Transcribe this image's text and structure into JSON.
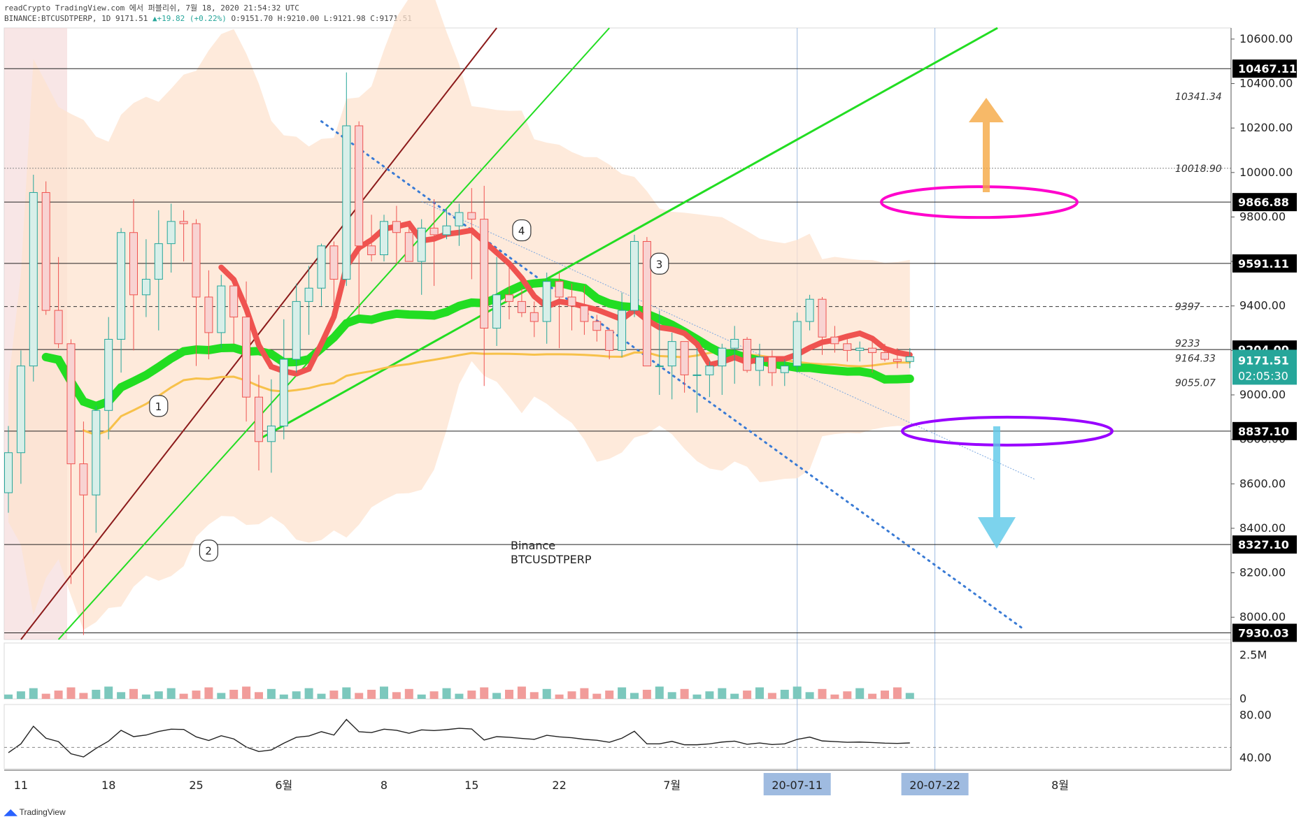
{
  "header": {
    "line1": "readCrypto TradingView.com 에서 퍼블리쉬, 7월 18, 2020 21:54:32 UTC",
    "symbol": "BINANCE:BTCUSDTPERP, 1D",
    "last": "9171.51",
    "change": "▲+19.82 (+0.22%)",
    "ohlc": "O:9151.70 H:9210.00 L:9121.98 C:9171.51"
  },
  "footer": {
    "brand": "TradingView"
  },
  "watermark": [
    "Binance",
    "BTCUSDTPERP"
  ],
  "colors": {
    "up": "#26a69a",
    "down": "#ef5350",
    "cloud": "#fde3cf",
    "green_line": "#22dd22",
    "dark_red_line": "#8b1a1a",
    "yellow_ma": "#f7c14a",
    "magenta": "#ff00cc",
    "purple": "#9900ff",
    "orange_arrow": "#f5a742",
    "blue_arrow": "#5bc8e8"
  },
  "chart_data": {
    "type": "candlestick",
    "price_axis": {
      "ylim": [
        7900,
        10650
      ],
      "ticks": [
        "10600.00",
        "10400.00",
        "10200.00",
        "10000.00",
        "9800.00",
        "9600.00",
        "9400.00",
        "9200.00",
        "9000.00",
        "8800.00",
        "8600.00",
        "8400.00",
        "8200.00",
        "8000.00"
      ],
      "levels": [
        {
          "label": "10467.11",
          "value": 10467.11
        },
        {
          "label": "9866.88",
          "value": 9866.88
        },
        {
          "label": "9591.11",
          "value": 9591.11
        },
        {
          "label": "9204.00",
          "value": 9204.0
        },
        {
          "label": "8837.10",
          "value": 8837.1
        },
        {
          "label": "8327.10",
          "value": 8327.1
        },
        {
          "label": "7930.03",
          "value": 7930.03
        }
      ],
      "current_price": "9171.51",
      "countdown": "02:05:30",
      "annotations": [
        {
          "label": "10341.34",
          "value": 10341.34
        },
        {
          "label": "10018.90",
          "value": 10018.9
        },
        {
          "label": "9397",
          "value": 9397
        },
        {
          "label": "9233",
          "value": 9233
        },
        {
          "label": "9164.33",
          "value": 9164.33
        },
        {
          "label": "9055.07",
          "value": 9055.07
        }
      ]
    },
    "time_axis": {
      "ticks": [
        {
          "label": "11",
          "bar": 1
        },
        {
          "label": "18",
          "bar": 8
        },
        {
          "label": "25",
          "bar": 15
        },
        {
          "label": "6월",
          "bar": 22
        },
        {
          "label": "8",
          "bar": 30
        },
        {
          "label": "15",
          "bar": 37
        },
        {
          "label": "22",
          "bar": 44
        },
        {
          "label": "7월",
          "bar": 53
        },
        {
          "label": "20-07-11",
          "bar": 63,
          "highlight": true
        },
        {
          "label": "20-07-22",
          "bar": 74,
          "highlight": true
        },
        {
          "label": "8월",
          "bar": 84
        }
      ]
    },
    "candles": [
      [
        8560,
        8860,
        8470,
        8740
      ],
      [
        8740,
        9200,
        8600,
        9130
      ],
      [
        9130,
        9990,
        9060,
        9910
      ],
      [
        9910,
        9960,
        9360,
        9380
      ],
      [
        9380,
        9620,
        9210,
        9230
      ],
      [
        9230,
        9250,
        8150,
        8690
      ],
      [
        8690,
        8880,
        7920,
        8550
      ],
      [
        8550,
        8950,
        8380,
        8930
      ],
      [
        8930,
        9350,
        8800,
        9250
      ],
      [
        9250,
        9750,
        9100,
        9730
      ],
      [
        9730,
        9880,
        9200,
        9450
      ],
      [
        9450,
        9700,
        9350,
        9520
      ],
      [
        9520,
        9830,
        9290,
        9680
      ],
      [
        9680,
        9860,
        9550,
        9780
      ],
      [
        9780,
        9830,
        9600,
        9770
      ],
      [
        9770,
        9790,
        9130,
        9440
      ],
      [
        9440,
        9560,
        9160,
        9280
      ],
      [
        9280,
        9540,
        9210,
        9490
      ],
      [
        9490,
        9530,
        9230,
        9350
      ],
      [
        9350,
        9510,
        8880,
        8990
      ],
      [
        8990,
        9090,
        8660,
        8790
      ],
      [
        8790,
        9070,
        8650,
        8860
      ],
      [
        8860,
        9340,
        8800,
        9160
      ],
      [
        9160,
        9500,
        9100,
        9420
      ],
      [
        9420,
        9580,
        9270,
        9480
      ],
      [
        9480,
        9680,
        9400,
        9670
      ],
      [
        9670,
        9690,
        9400,
        9520
      ],
      [
        9520,
        10450,
        9490,
        10210
      ],
      [
        10210,
        10230,
        9360,
        9670
      ],
      [
        9670,
        9810,
        9600,
        9630
      ],
      [
        9630,
        9810,
        9600,
        9780
      ],
      [
        9780,
        9850,
        9590,
        9730
      ],
      [
        9730,
        9780,
        9600,
        9600
      ],
      [
        9600,
        9790,
        9450,
        9750
      ],
      [
        9750,
        9880,
        9490,
        9720
      ],
      [
        9720,
        9840,
        9700,
        9760
      ],
      [
        9760,
        9860,
        9670,
        9820
      ],
      [
        9820,
        9930,
        9520,
        9790
      ],
      [
        9790,
        9940,
        9040,
        9300
      ],
      [
        9300,
        9620,
        9220,
        9450
      ],
      [
        9450,
        9580,
        9340,
        9420
      ],
      [
        9420,
        9480,
        9350,
        9370
      ],
      [
        9370,
        9420,
        9260,
        9330
      ],
      [
        9330,
        9550,
        9230,
        9510
      ],
      [
        9510,
        9550,
        9210,
        9440
      ],
      [
        9440,
        9500,
        9290,
        9400
      ],
      [
        9400,
        9490,
        9270,
        9330
      ],
      [
        9330,
        9360,
        9240,
        9290
      ],
      [
        9290,
        9300,
        9160,
        9200
      ],
      [
        9200,
        9460,
        9170,
        9380
      ],
      [
        9380,
        9720,
        9350,
        9690
      ],
      [
        9690,
        9710,
        9140,
        9130
      ],
      [
        9130,
        9380,
        9000,
        9130
      ],
      [
        9130,
        9280,
        8980,
        9240
      ],
      [
        9240,
        9230,
        9010,
        9090
      ],
      [
        9090,
        9210,
        8920,
        9090
      ],
      [
        9090,
        9150,
        8990,
        9130
      ],
      [
        9130,
        9230,
        9000,
        9210
      ],
      [
        9210,
        9310,
        9050,
        9250
      ],
      [
        9250,
        9260,
        9100,
        9110
      ],
      [
        9110,
        9230,
        9040,
        9170
      ],
      [
        9170,
        9200,
        9040,
        9100
      ],
      [
        9100,
        9160,
        9040,
        9130
      ],
      [
        9130,
        9370,
        9100,
        9330
      ],
      [
        9330,
        9450,
        9290,
        9430
      ],
      [
        9430,
        9440,
        9180,
        9260
      ],
      [
        9260,
        9310,
        9190,
        9230
      ],
      [
        9230,
        9260,
        9150,
        9200
      ],
      [
        9200,
        9240,
        9150,
        9210
      ],
      [
        9210,
        9260,
        9100,
        9190
      ],
      [
        9190,
        9230,
        9150,
        9160
      ],
      [
        9160,
        9210,
        9120,
        9150
      ],
      [
        9150,
        9210,
        9120,
        9171.51
      ]
    ],
    "labels": [
      "1",
      "2",
      "3",
      "4"
    ],
    "volume_axis": {
      "ticks": [
        "2.5M",
        "0"
      ]
    },
    "oscillator_axis": {
      "ticks": [
        "80.00",
        "40.00"
      ]
    }
  }
}
